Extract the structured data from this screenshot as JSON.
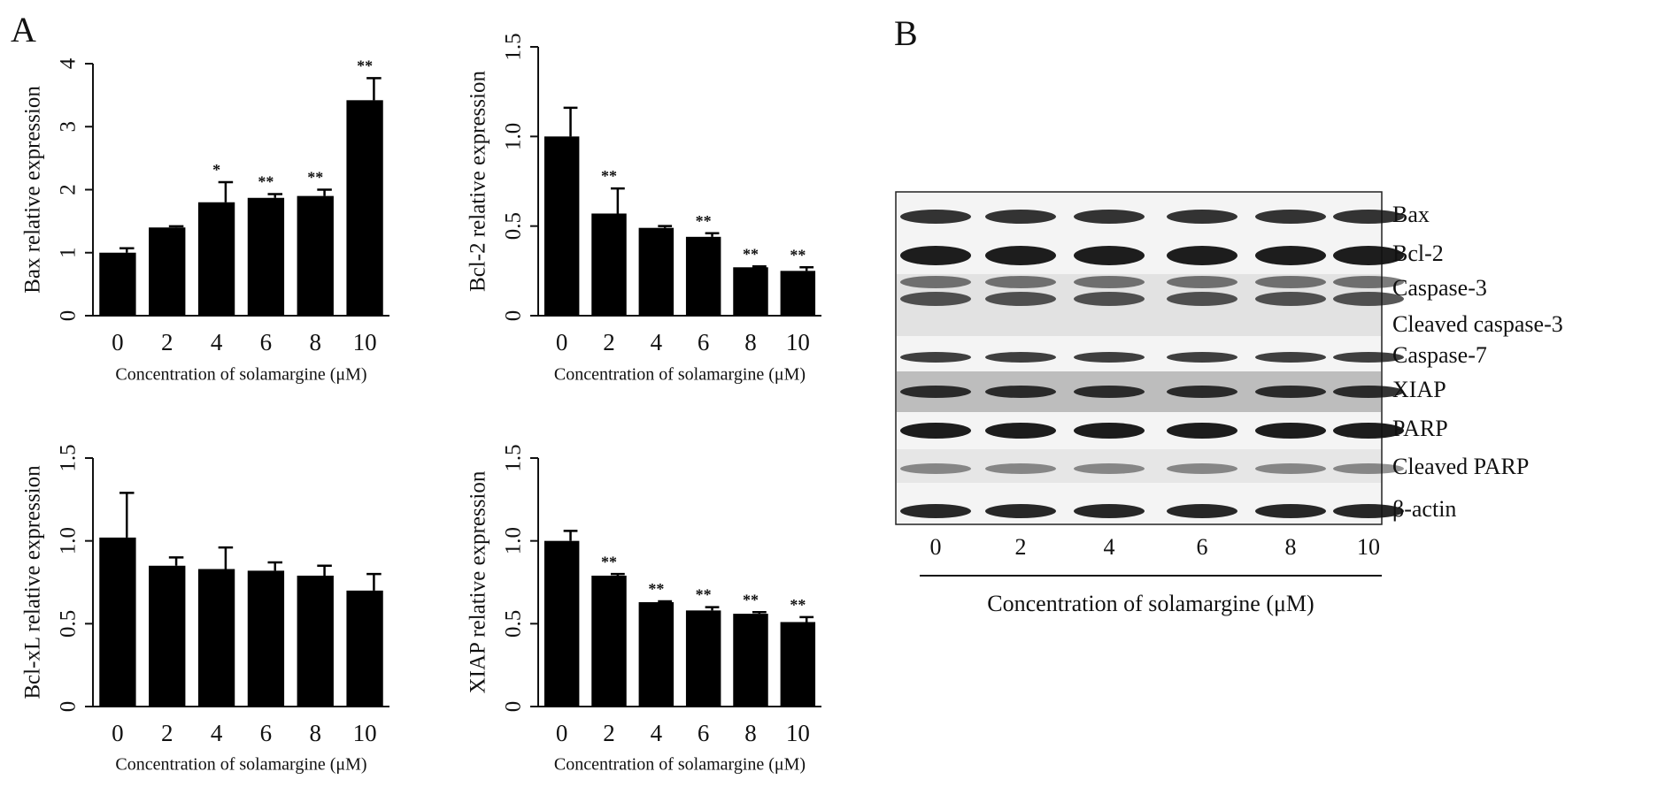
{
  "panels": {
    "a": "A",
    "b": "B"
  },
  "chart_data": [
    {
      "type": "bar",
      "ylabel": "Bax relative expression",
      "xlabel": "Concentration of solamargine (μM)",
      "categories": [
        "0",
        "2",
        "4",
        "6",
        "8",
        "10"
      ],
      "values": [
        1.0,
        1.4,
        1.8,
        1.87,
        1.9,
        3.42
      ],
      "errors": [
        0.07,
        0.02,
        0.32,
        0.06,
        0.1,
        0.35
      ],
      "annotations": [
        null,
        null,
        "*",
        "**",
        "**",
        "**"
      ],
      "color": "#000000",
      "ylim": [
        0,
        4
      ],
      "yticks": [
        0,
        1,
        2,
        3,
        4
      ]
    },
    {
      "type": "bar",
      "ylabel": "Bcl-2 relative expression",
      "xlabel": "Concentration of solamargine (μM)",
      "categories": [
        "0",
        "2",
        "4",
        "6",
        "8",
        "10"
      ],
      "values": [
        1.0,
        0.57,
        0.49,
        0.44,
        0.27,
        0.25
      ],
      "errors": [
        0.16,
        0.14,
        0.01,
        0.02,
        0.005,
        0.02
      ],
      "annotations": [
        null,
        "**",
        null,
        "**",
        "**",
        "**"
      ],
      "color": "#000000",
      "ylim": [
        0,
        1.5
      ],
      "yticks": [
        0,
        0.5,
        {
          "value": 1.0,
          "label": "1.0"
        },
        1.5
      ]
    },
    {
      "type": "bar",
      "ylabel": "Bcl-xL relative expression",
      "xlabel": "Concentration of solamargine (μM)",
      "categories": [
        "0",
        "2",
        "4",
        "6",
        "8",
        "10"
      ],
      "values": [
        1.02,
        0.85,
        0.83,
        0.82,
        0.79,
        0.7
      ],
      "errors": [
        0.27,
        0.05,
        0.13,
        0.05,
        0.06,
        0.1
      ],
      "annotations": [
        null,
        null,
        null,
        null,
        null,
        null
      ],
      "color": "#000000",
      "ylim": [
        0,
        1.5
      ],
      "yticks": [
        0,
        0.5,
        {
          "value": 1.0,
          "label": "1.0"
        },
        1.5
      ]
    },
    {
      "type": "bar",
      "ylabel": "XIAP relative expression",
      "xlabel": "Concentration of solamargine (μM)",
      "categories": [
        "0",
        "2",
        "4",
        "6",
        "8",
        "10"
      ],
      "values": [
        1.0,
        0.79,
        0.63,
        0.58,
        0.56,
        0.51
      ],
      "errors": [
        0.06,
        0.01,
        0.005,
        0.02,
        0.01,
        0.03
      ],
      "annotations": [
        null,
        "**",
        "**",
        "**",
        "**",
        "**"
      ],
      "color": "#000000",
      "ylim": [
        0,
        1.5
      ],
      "yticks": [
        0,
        0.5,
        {
          "value": 1.0,
          "label": "1.0"
        },
        1.5
      ]
    }
  ],
  "blot": {
    "rows": [
      "Bax",
      "Bcl-2",
      "Caspase-3",
      "Cleaved caspase-3",
      "Caspase-7",
      "XIAP",
      "PARP",
      "Cleaved PARP",
      "β-actin"
    ],
    "lanes": [
      "0",
      "2",
      "4",
      "6",
      "8",
      "10"
    ],
    "xlabel": "Concentration of solamargine (μM)"
  }
}
